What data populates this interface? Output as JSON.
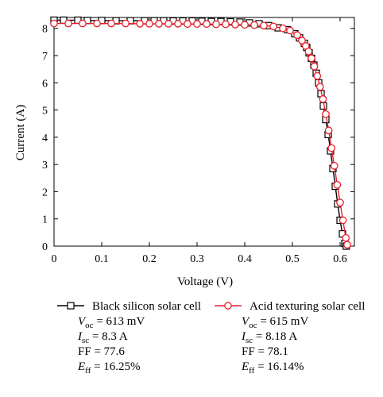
{
  "chart_data": {
    "type": "line",
    "xlabel": "Voltage (V)",
    "ylabel": "Current (A)",
    "xlim": [
      0,
      0.63
    ],
    "ylim": [
      0,
      8.4
    ],
    "x_ticks": [
      "0",
      "0.1",
      "0.2",
      "0.3",
      "0.4",
      "0.5",
      "0.6"
    ],
    "x_tick_values": [
      0,
      0.1,
      0.2,
      0.3,
      0.4,
      0.5,
      0.6
    ],
    "y_ticks": [
      "0",
      "1",
      "2",
      "3",
      "4",
      "5",
      "6",
      "7",
      "8"
    ],
    "y_tick_values": [
      0,
      1,
      2,
      3,
      4,
      5,
      6,
      7,
      8
    ],
    "grid": false,
    "legend_position": "below",
    "series": [
      {
        "name": "Black silicon solar cell",
        "marker": "square",
        "color": "#000000",
        "marker_fill": "#ffffff",
        "x": [
          0.0,
          0.02,
          0.05,
          0.07,
          0.1,
          0.13,
          0.16,
          0.19,
          0.21,
          0.23,
          0.25,
          0.27,
          0.29,
          0.31,
          0.33,
          0.35,
          0.37,
          0.39,
          0.41,
          0.43,
          0.45,
          0.47,
          0.49,
          0.505,
          0.515,
          0.525,
          0.53,
          0.535,
          0.54,
          0.545,
          0.55,
          0.555,
          0.56,
          0.565,
          0.57,
          0.575,
          0.58,
          0.585,
          0.59,
          0.595,
          0.6,
          0.605,
          0.61,
          0.613
        ],
        "y": [
          8.3,
          8.3,
          8.3,
          8.29,
          8.29,
          8.28,
          8.28,
          8.28,
          8.28,
          8.28,
          8.27,
          8.27,
          8.27,
          8.26,
          8.25,
          8.25,
          8.24,
          8.23,
          8.2,
          8.17,
          8.1,
          8.02,
          7.95,
          7.8,
          7.65,
          7.45,
          7.3,
          7.1,
          6.9,
          6.65,
          6.35,
          6.0,
          5.6,
          5.15,
          4.65,
          4.1,
          3.5,
          2.85,
          2.2,
          1.55,
          0.95,
          0.45,
          0.1,
          0.0
        ]
      },
      {
        "name": "Acid texturing solar cell",
        "marker": "circle",
        "color": "#e8202a",
        "marker_fill": "#ffffff",
        "x": [
          0.0,
          0.03,
          0.06,
          0.09,
          0.12,
          0.15,
          0.18,
          0.2,
          0.22,
          0.24,
          0.26,
          0.28,
          0.3,
          0.32,
          0.34,
          0.36,
          0.38,
          0.4,
          0.42,
          0.44,
          0.46,
          0.48,
          0.495,
          0.51,
          0.52,
          0.528,
          0.534,
          0.54,
          0.546,
          0.552,
          0.558,
          0.564,
          0.57,
          0.576,
          0.582,
          0.588,
          0.594,
          0.6,
          0.606,
          0.612,
          0.615
        ],
        "y": [
          8.18,
          8.18,
          8.18,
          8.18,
          8.18,
          8.18,
          8.17,
          8.17,
          8.17,
          8.17,
          8.17,
          8.16,
          8.16,
          8.16,
          8.15,
          8.15,
          8.14,
          8.13,
          8.12,
          8.1,
          8.07,
          8.0,
          7.92,
          7.75,
          7.55,
          7.35,
          7.15,
          6.9,
          6.6,
          6.25,
          5.85,
          5.4,
          4.85,
          4.25,
          3.6,
          2.95,
          2.25,
          1.6,
          0.95,
          0.3,
          0.05
        ]
      }
    ],
    "stats": [
      {
        "voc": "613 mV",
        "isc": "8.3 A",
        "ff": "77.6",
        "eff": "16.25%"
      },
      {
        "voc": "615 mV",
        "isc": "8.18 A",
        "ff": "78.1",
        "eff": "16.14%"
      }
    ],
    "stat_labels": {
      "voc_main": "V",
      "voc_sub": "oc",
      "isc_main": "I",
      "isc_sub": "sc",
      "ff": "FF",
      "eff_main": "E",
      "eff_sub": "ff",
      "equals": "="
    }
  }
}
